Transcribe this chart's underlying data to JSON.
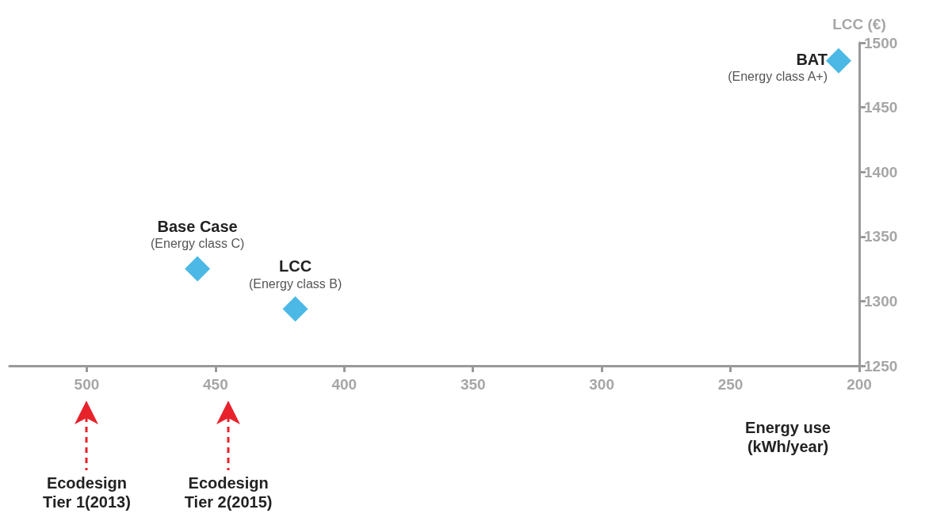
{
  "chart_data": {
    "type": "scatter",
    "xlabel": "Energy use\n(kWh/year)",
    "ylabel": "LCC (€)",
    "x": [
      457,
      419,
      208
    ],
    "series": [
      {
        "color": "#1ea6df",
        "values": [
          1325,
          1294,
          1486
        ]
      }
    ],
    "marker": "diamond",
    "xlim": [
      530,
      200
    ],
    "xticks": [
      500,
      450,
      400,
      350,
      300,
      250,
      200
    ],
    "ylim": [
      1250,
      1500
    ],
    "yticks": [
      1250,
      1300,
      1350,
      1400,
      1450,
      1500
    ],
    "grid": false,
    "ref_lines": [
      {
        "axis": "x",
        "value": 500,
        "label": "Ecodesign\nTier 1(2013)",
        "color": "#e8222b",
        "line_style": "dashed"
      },
      {
        "axis": "x",
        "value": 445,
        "label": "Ecodesign\nTier 2(2015)",
        "color": "#e8222b",
        "line_style": "dashed"
      }
    ],
    "annotations": [
      {
        "text": "Base Case\n(Energy class C)",
        "x": 457,
        "y": 1325
      },
      {
        "text": "LCC\n(Energy class B)",
        "x": 419,
        "y": 1294
      },
      {
        "text": "BAT\n(Energy class A+)",
        "x": 208,
        "y": 1486
      }
    ]
  }
}
